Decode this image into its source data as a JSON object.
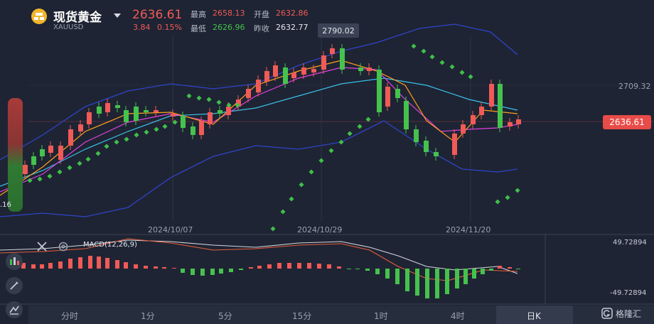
{
  "header": {
    "title": "现货黄金",
    "symbol": "XAUUSD",
    "price": "2636.61",
    "change": "3.84",
    "change_pct": "0.15%",
    "high_label": "最高",
    "high_value": "2658.13",
    "low_label": "最低",
    "low_value": "2626.96",
    "open_label": "开盘",
    "open_value": "2632.86",
    "prev_close_label": "昨收",
    "prev_close_value": "2632.77"
  },
  "chart": {
    "high_marker": "2790.02",
    "price_level": "2709.32",
    "current_price_tag": "2636.61",
    "left_partial_label": ".16",
    "dates": [
      "2024/10/07",
      "2024/10/29",
      "2024/11/20"
    ],
    "colors": {
      "up": "#f05a57",
      "down": "#45c24d",
      "boll": "#2f44c9",
      "ma5": "#ff9f1c",
      "ma10": "#e040e0",
      "ma20": "#3ac0e8",
      "sar": "#3fbf4a"
    }
  },
  "macd": {
    "label": "MACD(12,26,9)",
    "top_value": "49.72894",
    "bottom_value": "-49.72894"
  },
  "timeframes": [
    "分时",
    "1分",
    "5分",
    "15分",
    "1时",
    "4时",
    "日K"
  ],
  "watermark": "格隆汇",
  "icons": [
    "close-icon",
    "settings-icon",
    "pencil-icon",
    "line-tool-icon",
    "indicator-icon"
  ]
}
